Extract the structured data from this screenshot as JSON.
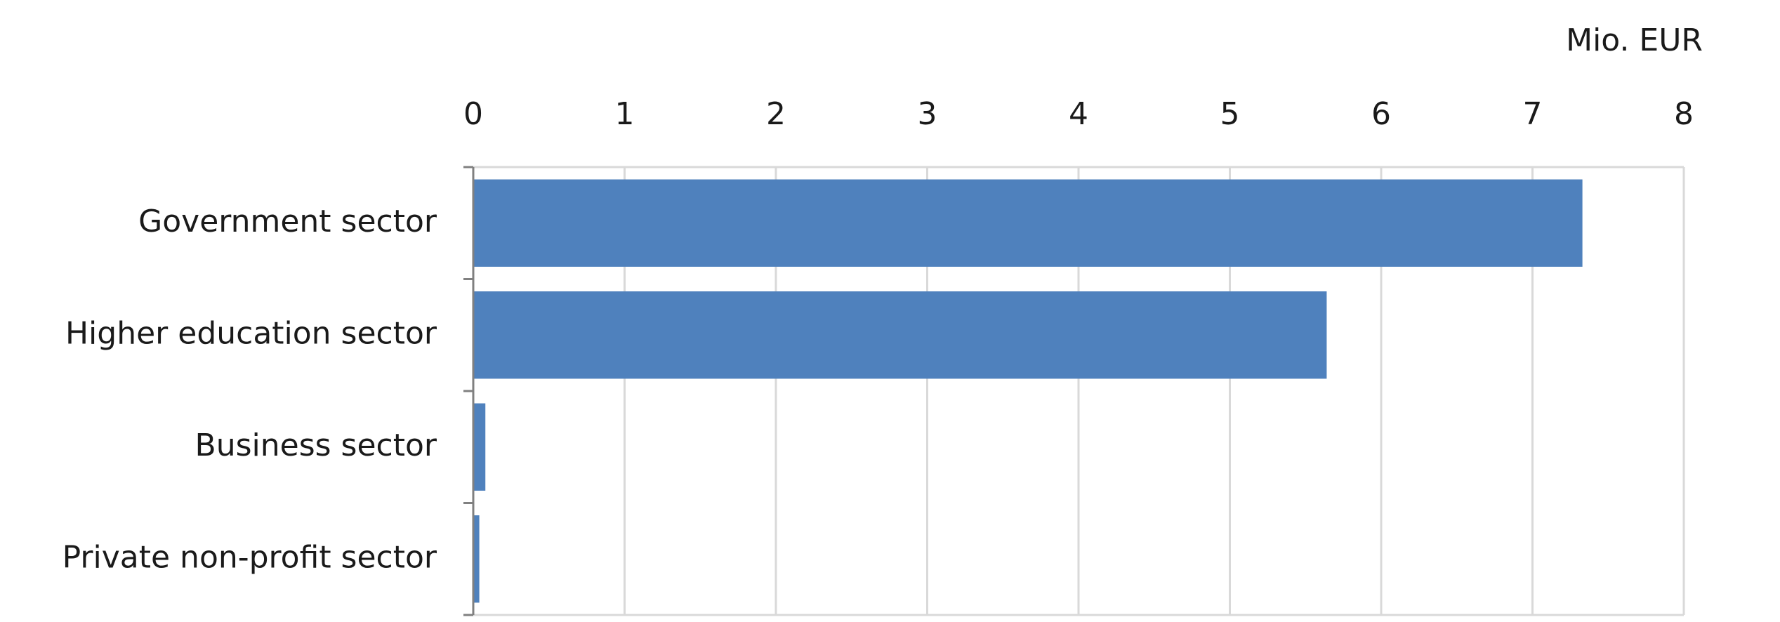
{
  "chart_data": {
    "type": "hbar",
    "x_label": "Mio. EUR",
    "categories": [
      "Government sector",
      "Higher education sector",
      "Business sector",
      "Private non-profit sector"
    ],
    "values": [
      7.33,
      5.64,
      0.08,
      0.04
    ],
    "color": "#4f81bd",
    "xlim": [
      0,
      8
    ],
    "xticks": [
      0,
      1,
      2,
      3,
      4,
      5,
      6,
      7,
      8
    ],
    "grid": true
  }
}
